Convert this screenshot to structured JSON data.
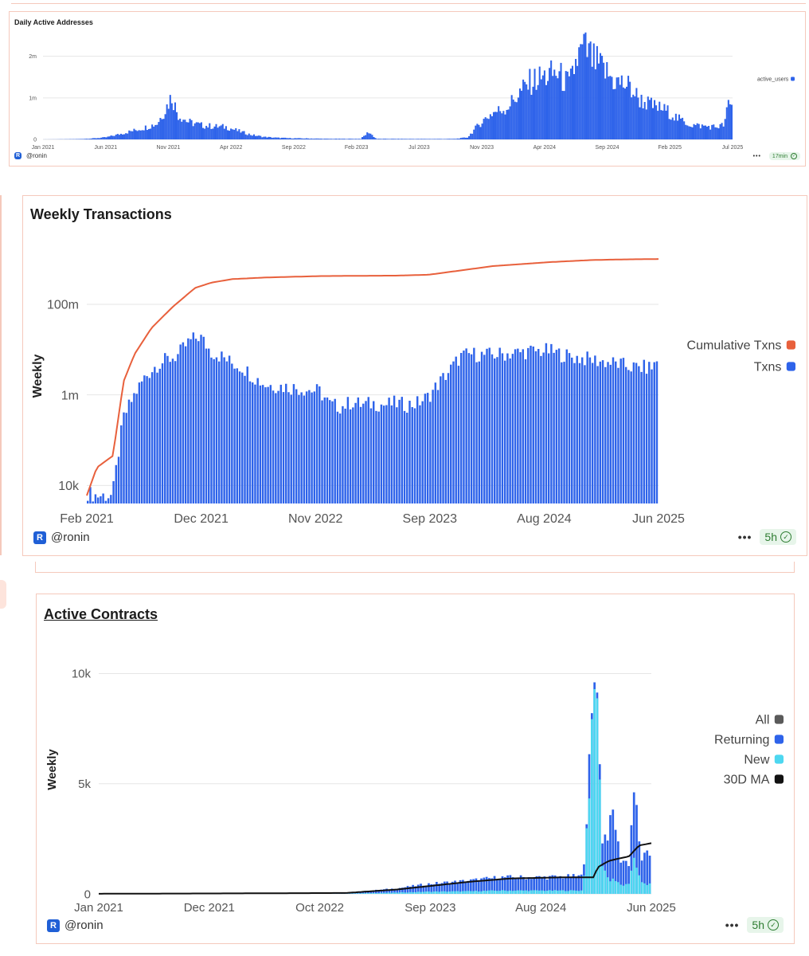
{
  "brand": {
    "logo_glyph": "R",
    "handle": "@ronin",
    "color": "#1f5fd6"
  },
  "cards": [
    {
      "title": "Daily Active Addresses",
      "freshness": "17min"
    },
    {
      "title": "Weekly Transactions",
      "freshness": "5h"
    },
    {
      "title": "Active Contracts",
      "freshness": "5h"
    }
  ],
  "chart_data": [
    {
      "type": "bar",
      "title": "Daily Active Addresses",
      "xlabel": "",
      "ylabel": "",
      "ylim": [
        0,
        2300000
      ],
      "y_ticks": [
        0,
        1000000,
        2000000
      ],
      "y_tick_labels": [
        "0",
        "1m",
        "2m"
      ],
      "x_tick_labels": [
        "Jan 2021",
        "Jun 2021",
        "Nov 2021",
        "Apr 2022",
        "Sep 2022",
        "Feb 2023",
        "Jul 2023",
        "Nov 2023",
        "Apr 2024",
        "Sep 2024",
        "Feb 2025",
        "Jul 2025"
      ],
      "x_range": [
        "2021-01-01",
        "2025-07-10"
      ],
      "grid": true,
      "legend_position": "right",
      "series": [
        {
          "name": "active_users",
          "color": "#2e63ea",
          "points": [
            [
              "2021-01-01",
              1000
            ],
            [
              "2021-02-01",
              3000
            ],
            [
              "2021-03-01",
              5000
            ],
            [
              "2021-04-01",
              10000
            ],
            [
              "2021-05-01",
              25000
            ],
            [
              "2021-06-01",
              50000
            ],
            [
              "2021-07-01",
              120000
            ],
            [
              "2021-08-01",
              200000
            ],
            [
              "2021-09-01",
              280000
            ],
            [
              "2021-10-01",
              380000
            ],
            [
              "2021-10-20",
              700000
            ],
            [
              "2021-11-05",
              1050000
            ],
            [
              "2021-11-20",
              600000
            ],
            [
              "2021-12-15",
              420000
            ],
            [
              "2022-01-15",
              340000
            ],
            [
              "2022-02-15",
              310000
            ],
            [
              "2022-03-15",
              300000
            ],
            [
              "2022-04-15",
              200000
            ],
            [
              "2022-05-15",
              110000
            ],
            [
              "2022-06-15",
              60000
            ],
            [
              "2022-07-15",
              40000
            ],
            [
              "2022-08-15",
              30000
            ],
            [
              "2022-09-15",
              25000
            ],
            [
              "2022-10-15",
              20000
            ],
            [
              "2022-11-15",
              15000
            ],
            [
              "2022-12-15",
              15000
            ],
            [
              "2023-01-15",
              15000
            ],
            [
              "2023-02-01",
              15000
            ],
            [
              "2023-02-20",
              180000
            ],
            [
              "2023-03-10",
              14000
            ],
            [
              "2023-04-15",
              14000
            ],
            [
              "2023-05-15",
              13000
            ],
            [
              "2023-06-15",
              12000
            ],
            [
              "2023-07-15",
              12000
            ],
            [
              "2023-08-15",
              12000
            ],
            [
              "2023-09-15",
              14000
            ],
            [
              "2023-10-15",
              50000
            ],
            [
              "2023-11-01",
              250000
            ],
            [
              "2023-11-20",
              450000
            ],
            [
              "2023-12-15",
              650000
            ],
            [
              "2024-01-15",
              750000
            ],
            [
              "2024-02-15",
              1100000
            ],
            [
              "2024-03-15",
              1400000
            ],
            [
              "2024-04-15",
              1500000
            ],
            [
              "2024-05-15",
              1600000
            ],
            [
              "2024-06-15",
              1300000
            ],
            [
              "2024-07-01",
              1900000
            ],
            [
              "2024-07-20",
              2200000
            ],
            [
              "2024-08-10",
              1900000
            ],
            [
              "2024-09-01",
              1700000
            ],
            [
              "2024-10-01",
              1400000
            ],
            [
              "2024-11-01",
              1300000
            ],
            [
              "2024-12-01",
              950000
            ],
            [
              "2025-01-01",
              800000
            ],
            [
              "2025-02-01",
              700000
            ],
            [
              "2025-03-01",
              500000
            ],
            [
              "2025-04-01",
              350000
            ],
            [
              "2025-05-01",
              320000
            ],
            [
              "2025-06-01",
              300000
            ],
            [
              "2025-06-20",
              350000
            ],
            [
              "2025-07-01",
              880000
            ],
            [
              "2025-07-10",
              750000
            ]
          ]
        }
      ]
    },
    {
      "type": "bar",
      "title": "Weekly Transactions",
      "xlabel": "",
      "ylabel": "Weekly",
      "y_scale": "log",
      "ylim": [
        4000,
        2000000000
      ],
      "y_ticks": [
        10000,
        1000000,
        100000000
      ],
      "y_tick_labels": [
        "10k",
        "1m",
        "100m"
      ],
      "x_tick_labels": [
        "Feb 2021",
        "Dec 2021",
        "Nov 2022",
        "Sep 2023",
        "Aug 2024",
        "Jun 2025"
      ],
      "x_range": [
        "2021-02-01",
        "2025-06-20"
      ],
      "grid": true,
      "legend_position": "right",
      "series": [
        {
          "name": "Cumulative Txns",
          "type": "line",
          "color": "#e8603c",
          "points": [
            [
              "2021-02-01",
              6000
            ],
            [
              "2021-03-01",
              25000
            ],
            [
              "2021-04-15",
              45000
            ],
            [
              "2021-05-15",
              2000000
            ],
            [
              "2021-06-15",
              8000000
            ],
            [
              "2021-08-01",
              30000000
            ],
            [
              "2021-10-01",
              90000000
            ],
            [
              "2021-12-01",
              230000000
            ],
            [
              "2022-01-15",
              300000000
            ],
            [
              "2022-03-15",
              360000000
            ],
            [
              "2022-06-15",
              390000000
            ],
            [
              "2022-11-15",
              420000000
            ],
            [
              "2023-06-15",
              430000000
            ],
            [
              "2023-09-15",
              450000000
            ],
            [
              "2023-11-15",
              520000000
            ],
            [
              "2024-03-15",
              700000000
            ],
            [
              "2024-08-15",
              850000000
            ],
            [
              "2024-12-15",
              950000000
            ],
            [
              "2025-03-15",
              980000000
            ],
            [
              "2025-06-20",
              1000000000
            ]
          ]
        },
        {
          "name": "Txns",
          "type": "bar",
          "color": "#2e63ea",
          "points": [
            [
              "2021-02-01",
              7000
            ],
            [
              "2021-03-01",
              6000
            ],
            [
              "2021-04-15",
              6000
            ],
            [
              "2021-05-15",
              300000
            ],
            [
              "2021-06-15",
              1000000
            ],
            [
              "2021-07-15",
              2500000
            ],
            [
              "2021-08-15",
              4500000
            ],
            [
              "2021-09-15",
              6000000
            ],
            [
              "2021-10-15",
              7500000
            ],
            [
              "2021-11-15",
              15000000
            ],
            [
              "2021-12-15",
              20000000
            ],
            [
              "2022-01-15",
              9000000
            ],
            [
              "2022-02-15",
              7000000
            ],
            [
              "2022-03-15",
              5000000
            ],
            [
              "2022-04-15",
              4000000
            ],
            [
              "2022-05-15",
              2500000
            ],
            [
              "2022-06-15",
              1700000
            ],
            [
              "2022-07-15",
              1600000
            ],
            [
              "2022-08-15",
              1500000
            ],
            [
              "2022-09-15",
              1400000
            ],
            [
              "2022-10-15",
              1300000
            ],
            [
              "2022-11-15",
              1200000
            ],
            [
              "2022-12-15",
              600000
            ],
            [
              "2023-01-15",
              550000
            ],
            [
              "2023-02-15",
              700000
            ],
            [
              "2023-03-15",
              600000
            ],
            [
              "2023-04-15",
              650000
            ],
            [
              "2023-05-15",
              600000
            ],
            [
              "2023-06-15",
              650000
            ],
            [
              "2023-07-15",
              600000
            ],
            [
              "2023-08-15",
              650000
            ],
            [
              "2023-09-15",
              900000
            ],
            [
              "2023-10-15",
              1800000
            ],
            [
              "2023-11-15",
              3500000
            ],
            [
              "2023-12-15",
              7000000
            ],
            [
              "2024-01-15",
              8000000
            ],
            [
              "2024-02-15",
              7500000
            ],
            [
              "2024-04-15",
              8000000
            ],
            [
              "2024-06-15",
              9000000
            ],
            [
              "2024-08-15",
              9500000
            ],
            [
              "2024-10-15",
              7000000
            ],
            [
              "2024-12-15",
              6000000
            ],
            [
              "2025-02-15",
              5000000
            ],
            [
              "2025-04-15",
              4000000
            ],
            [
              "2025-06-01",
              4000000
            ],
            [
              "2025-06-20",
              6000000
            ]
          ]
        }
      ]
    },
    {
      "type": "bar",
      "title": "Active Contracts",
      "xlabel": "",
      "ylabel": "Weekly",
      "ylim": [
        0,
        11500
      ],
      "y_ticks": [
        0,
        5000,
        10000
      ],
      "y_tick_labels": [
        "0",
        "5k",
        "10k"
      ],
      "x_tick_labels": [
        "Jan 2021",
        "Dec 2021",
        "Oct 2022",
        "Sep 2023",
        "Aug 2024",
        "Jun 2025"
      ],
      "x_range": [
        "2021-01-01",
        "2025-06-20"
      ],
      "grid": true,
      "legend_position": "right",
      "series": [
        {
          "name": "All",
          "color": "#5a5a5a",
          "points": []
        },
        {
          "name": "Returning",
          "color": "#2e63ea",
          "points": [
            [
              "2021-01-01",
              10
            ],
            [
              "2022-01-01",
              20
            ],
            [
              "2023-01-01",
              40
            ],
            [
              "2023-06-01",
              250
            ],
            [
              "2023-09-01",
              450
            ],
            [
              "2024-01-01",
              600
            ],
            [
              "2024-04-01",
              750
            ],
            [
              "2024-08-01",
              750
            ],
            [
              "2024-12-01",
              800
            ],
            [
              "2025-01-10",
              11300
            ],
            [
              "2025-01-25",
              2500
            ],
            [
              "2025-02-15",
              2800
            ],
            [
              "2025-03-01",
              3800
            ],
            [
              "2025-03-20",
              1600
            ],
            [
              "2025-04-15",
              1400
            ],
            [
              "2025-05-01",
              4900
            ],
            [
              "2025-05-20",
              1600
            ],
            [
              "2025-06-20",
              1800
            ]
          ]
        },
        {
          "name": "New",
          "color": "#4dd7f0",
          "points": [
            [
              "2021-01-01",
              2
            ],
            [
              "2022-01-01",
              5
            ],
            [
              "2023-01-01",
              10
            ],
            [
              "2023-06-01",
              60
            ],
            [
              "2023-09-01",
              100
            ],
            [
              "2024-01-01",
              120
            ],
            [
              "2024-04-01",
              150
            ],
            [
              "2024-08-01",
              150
            ],
            [
              "2024-12-01",
              150
            ],
            [
              "2025-01-10",
              10500
            ],
            [
              "2025-01-25",
              1500
            ],
            [
              "2025-02-15",
              600
            ],
            [
              "2025-03-01",
              700
            ],
            [
              "2025-03-20",
              400
            ],
            [
              "2025-04-15",
              400
            ],
            [
              "2025-05-01",
              1800
            ],
            [
              "2025-05-20",
              500
            ],
            [
              "2025-06-20",
              400
            ]
          ]
        },
        {
          "name": "30D MA",
          "type": "line",
          "color": "#111111",
          "points": [
            [
              "2021-01-01",
              5
            ],
            [
              "2022-01-01",
              20
            ],
            [
              "2023-01-01",
              40
            ],
            [
              "2023-06-01",
              200
            ],
            [
              "2023-09-01",
              350
            ],
            [
              "2024-01-01",
              550
            ],
            [
              "2024-05-01",
              700
            ],
            [
              "2024-10-01",
              750
            ],
            [
              "2025-01-01",
              750
            ],
            [
              "2025-01-12",
              1200
            ],
            [
              "2025-02-15",
              1500
            ],
            [
              "2025-03-15",
              1600
            ],
            [
              "2025-04-15",
              1700
            ],
            [
              "2025-05-15",
              2200
            ],
            [
              "2025-06-20",
              2300
            ]
          ]
        }
      ]
    }
  ]
}
